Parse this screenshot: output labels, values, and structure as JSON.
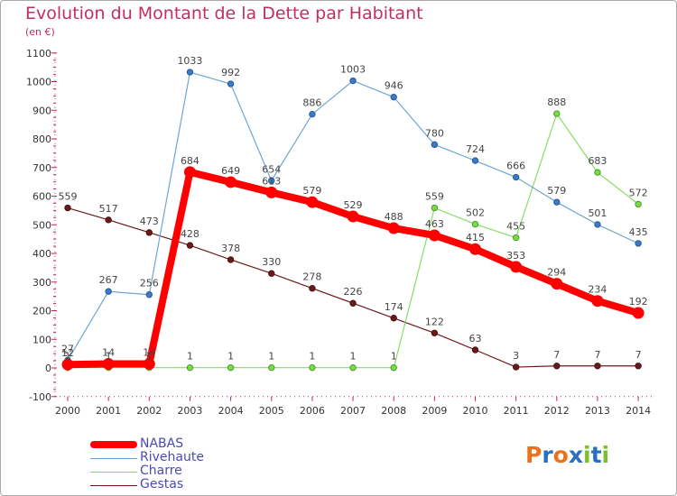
{
  "chart_data": {
    "type": "line",
    "title": "Evolution du Montant de la Dette par Habitant",
    "subtitle": "(en €)",
    "x": [
      "2000",
      "2001",
      "2002",
      "2003",
      "2004",
      "2005",
      "2006",
      "2007",
      "2008",
      "2009",
      "2010",
      "2011",
      "2012",
      "2013",
      "2014"
    ],
    "ylim": [
      -100,
      1100
    ],
    "yticks": [
      -100,
      0,
      100,
      200,
      300,
      400,
      500,
      600,
      700,
      800,
      900,
      1000,
      1100
    ],
    "grid": false,
    "legend_position": "bottom-left",
    "series": [
      {
        "name": "NABAS",
        "color": "#ff0000",
        "values": [
          12,
          14,
          14,
          684,
          649,
          613,
          579,
          529,
          488,
          463,
          415,
          353,
          294,
          234,
          192
        ]
      },
      {
        "name": "Rivehaute",
        "color": "#6ea6d6",
        "values": [
          27,
          267,
          256,
          1033,
          992,
          654,
          886,
          1003,
          946,
          780,
          724,
          666,
          579,
          501,
          435
        ]
      },
      {
        "name": "Charre",
        "color": "#88dd66",
        "values": [
          1,
          1,
          1,
          1,
          1,
          1,
          1,
          1,
          1,
          559,
          502,
          455,
          888,
          683,
          572
        ]
      },
      {
        "name": "Gestas",
        "color": "#6b1a1a",
        "values": [
          559,
          517,
          473,
          428,
          378,
          330,
          278,
          226,
          174,
          122,
          63,
          3,
          7,
          7,
          7
        ]
      }
    ]
  },
  "logo": {
    "text": "Proxiti"
  }
}
